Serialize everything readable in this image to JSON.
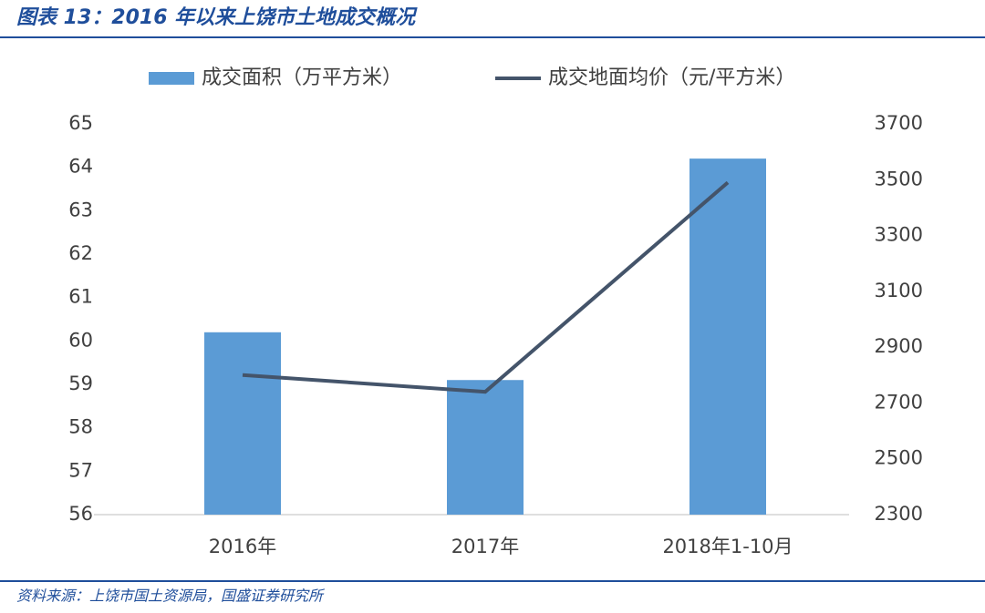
{
  "title": "图表 13：2016 年以来上饶市土地成交概况",
  "source": "资料来源：上饶市国土资源局，国盛证券研究所",
  "chart_data": {
    "type": "bar-line",
    "categories": [
      "2016年",
      "2017年",
      "2018年1-10月"
    ],
    "series": [
      {
        "name": "成交面积（万平方米）",
        "color": "#5b9bd5",
        "type": "bar",
        "values": [
          60.2,
          59.1,
          64.2
        ]
      },
      {
        "name": "成交地面均价（元/平方米）",
        "color": "#44546a",
        "type": "line",
        "axis": "y2",
        "values": [
          2800,
          2740,
          3490
        ]
      }
    ],
    "ylim": [
      56,
      65
    ],
    "yticks": [
      56,
      57,
      58,
      59,
      60,
      61,
      62,
      63,
      64,
      65
    ],
    "y2lim": [
      2300,
      3700
    ],
    "y2ticks": [
      2300,
      2500,
      2700,
      2900,
      3100,
      3300,
      3500,
      3700
    ],
    "legend": "top"
  }
}
